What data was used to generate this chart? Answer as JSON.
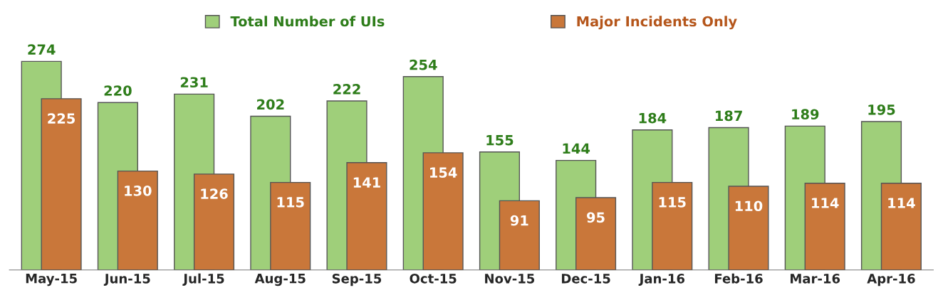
{
  "chart_data": {
    "type": "bar",
    "categories": [
      "May-15",
      "Jun-15",
      "Jul-15",
      "Aug-15",
      "Sep-15",
      "Oct-15",
      "Nov-15",
      "Dec-15",
      "Jan-16",
      "Feb-16",
      "Mar-16",
      "Apr-16"
    ],
    "series": [
      {
        "name": "Total Number of UIs",
        "color": "#9fcf7a",
        "values": [
          274,
          220,
          231,
          202,
          222,
          254,
          155,
          144,
          184,
          187,
          189,
          195
        ]
      },
      {
        "name": "Major Incidents Only",
        "color": "#c9773a",
        "values": [
          225,
          130,
          126,
          115,
          141,
          154,
          91,
          95,
          115,
          110,
          114,
          114
        ]
      }
    ],
    "data_labels": true,
    "legend": "top",
    "grid": false
  }
}
